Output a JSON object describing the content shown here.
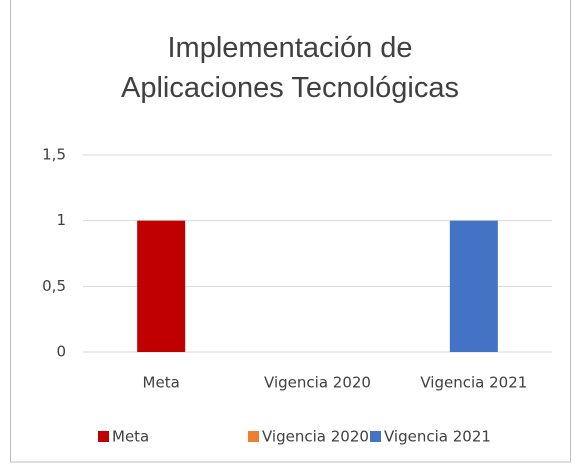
{
  "chart_data": {
    "type": "bar",
    "title": "Implementación de Aplicaciones Tecnológicas",
    "categories": [
      "Meta",
      "Vigencia 2020",
      "Vigencia 2021"
    ],
    "values": [
      1,
      0,
      1
    ],
    "colors": [
      "#c00000",
      "#ed7d31",
      "#4472c4"
    ],
    "ylim": [
      0,
      1.5
    ],
    "yticks": [
      0,
      {
        "value": 0.5,
        "label": "0,5"
      },
      1,
      {
        "value": 1.5,
        "label": "1,5"
      }
    ],
    "grid": true,
    "legend": "bottom"
  }
}
